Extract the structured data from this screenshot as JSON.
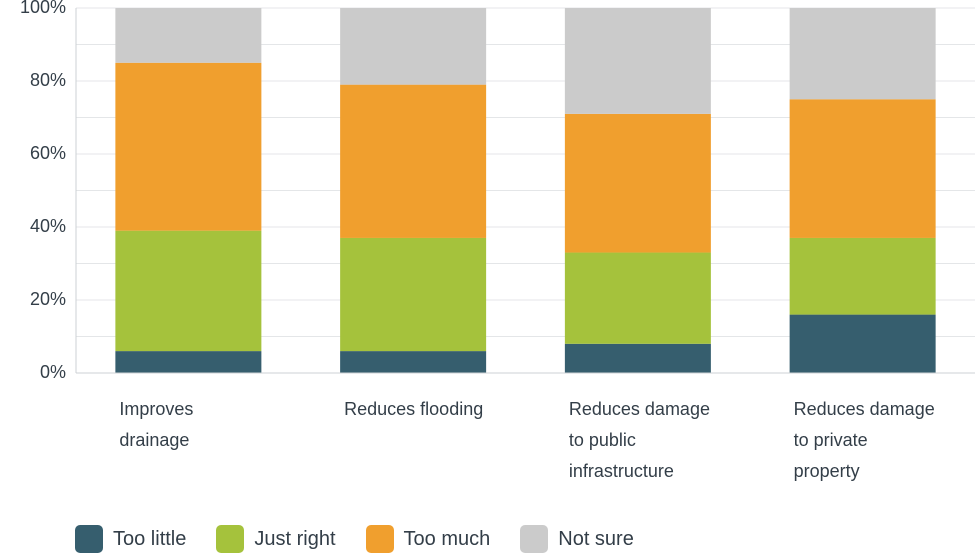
{
  "chart_data": {
    "type": "bar",
    "stacked": true,
    "categories": [
      [
        "Improves",
        "drainage"
      ],
      [
        "Reduces flooding"
      ],
      [
        "Reduces damage",
        "to public",
        "infrastructure"
      ],
      [
        "Reduces damage",
        "to private",
        "property"
      ]
    ],
    "series": [
      {
        "name": "Too little",
        "color": "#365e6e",
        "values": [
          6,
          6,
          8,
          16
        ]
      },
      {
        "name": "Just right",
        "color": "#a5c23c",
        "values": [
          33,
          31,
          25,
          21
        ]
      },
      {
        "name": "Too much",
        "color": "#f09f2e",
        "values": [
          46,
          42,
          38,
          38
        ]
      },
      {
        "name": "Not sure",
        "color": "#cbcbcb",
        "values": [
          15,
          21,
          29,
          25
        ]
      }
    ],
    "y_ticks": [
      "0%",
      "20%",
      "40%",
      "60%",
      "80%",
      "100%"
    ],
    "ylim": [
      0,
      100
    ],
    "grid": true,
    "legend_position": "bottom-left"
  }
}
